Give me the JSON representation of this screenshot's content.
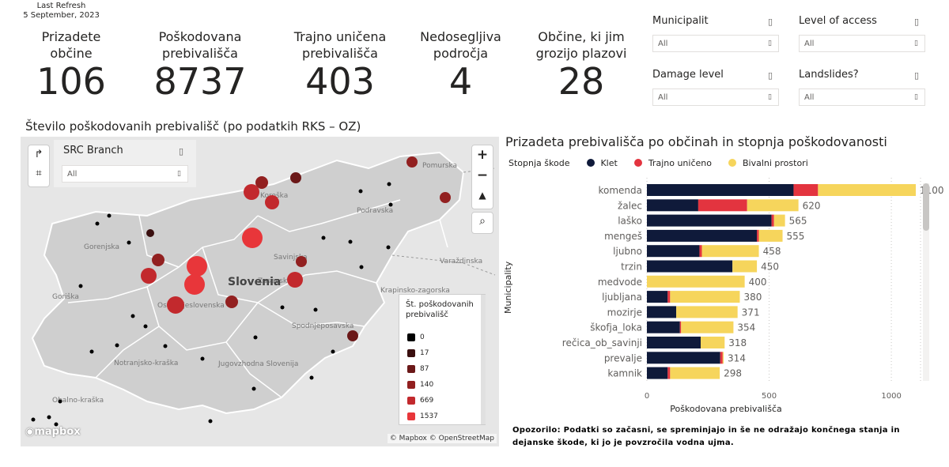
{
  "refresh": {
    "label": "Last Refresh",
    "date": "5 September, 2023"
  },
  "kpis": [
    {
      "line1": "Prizadete",
      "line2": "občine",
      "value": "106"
    },
    {
      "line1": "Poškodovana",
      "line2": "prebivališča",
      "value": "8737"
    },
    {
      "line1": "Trajno uničena",
      "line2": "prebivališča",
      "value": "403"
    },
    {
      "line1": "Nedosegljiva",
      "line2": "področja",
      "value": "4"
    },
    {
      "line1": "Občine, ki jim",
      "line2": "grozijo plazovi",
      "value": "28"
    }
  ],
  "slicers": [
    {
      "title": "Municipalit",
      "value": "All"
    },
    {
      "title": "Level of access",
      "value": "All"
    },
    {
      "title": "Damage level",
      "value": "All"
    },
    {
      "title": "Landslides?",
      "value": "All"
    }
  ],
  "slicer_icon": "▯",
  "map": {
    "title": "Število poškodovanih prebivališč (po podatkih RKS – OZ)",
    "src_slicer": {
      "title": "SRC Branch",
      "value": "All"
    },
    "country_label": "Slovenia",
    "region_labels": [
      "Pomurska",
      "Koroška",
      "Podravska",
      "Gorenjska",
      "Savinjska",
      "Zasavska",
      "Varaždinska",
      "Goriška",
      "Osrednjeslovenska",
      "Krapinsko-zagorska",
      "Spodnjeposavska",
      "Notranjsko-kraška",
      "Jugovzhodna Slovenija",
      "Obalno-kraška"
    ],
    "legend": {
      "title_line1": "Št. poškodovanih",
      "title_line2": "prebivališč",
      "items": [
        {
          "label": "0",
          "color": "#000000"
        },
        {
          "label": "17",
          "color": "#3a0f0f"
        },
        {
          "label": "87",
          "color": "#6b1818"
        },
        {
          "label": "140",
          "color": "#922020"
        },
        {
          "label": "669",
          "color": "#c2292d"
        },
        {
          "label": "1537",
          "color": "#e8363a"
        }
      ]
    },
    "attribution": "© Mapbox © OpenStreetMap",
    "logo": "mapbox",
    "controls": {
      "zoom_in": "+",
      "zoom_out": "−",
      "compass": "▲",
      "search": "⌕"
    },
    "tools": {
      "share": "↱",
      "frame": "⌗"
    }
  },
  "chart_data": {
    "type": "bar",
    "orientation": "horizontal-stacked",
    "title": "Prizadeta prebivališča po občinah in stopnja poškodovanosti",
    "legend_title": "Stopnja škode",
    "xlabel": "Poškodovana prebivališča",
    "ylabel": "Municipality",
    "xlim": [
      0,
      1100
    ],
    "xticks": [
      0,
      500,
      1000
    ],
    "categories": [
      "komenda",
      "žalec",
      "laško",
      "mengeš",
      "ljubno",
      "trzin",
      "medvode",
      "ljubljana",
      "mozirje",
      "škofja_loka",
      "rečica_ob_savinji",
      "prevalje",
      "kamnik"
    ],
    "totals": [
      1100,
      620,
      565,
      555,
      458,
      450,
      400,
      380,
      371,
      354,
      318,
      314,
      298
    ],
    "series": [
      {
        "name": "Klet",
        "color": "#0f1a3a",
        "values": [
          600,
          210,
          510,
          450,
          215,
          350,
          0,
          85,
          120,
          135,
          220,
          300,
          85
        ]
      },
      {
        "name": "Trajno uničeno",
        "color": "#e3343f",
        "values": [
          100,
          200,
          10,
          8,
          10,
          0,
          0,
          10,
          0,
          5,
          0,
          10,
          10
        ]
      },
      {
        "name": "Bivalni prostori",
        "color": "#f6d55c",
        "values": [
          400,
          210,
          45,
          97,
          233,
          100,
          400,
          285,
          251,
          214,
          98,
          4,
          203
        ]
      }
    ]
  },
  "note": {
    "line1": "Opozorilo: Podatki so začasni, se spreminjajo in še ne odražajo končnega stanja in",
    "line2": "dejanske škode, ki jo je povzročila vodna ujma."
  }
}
